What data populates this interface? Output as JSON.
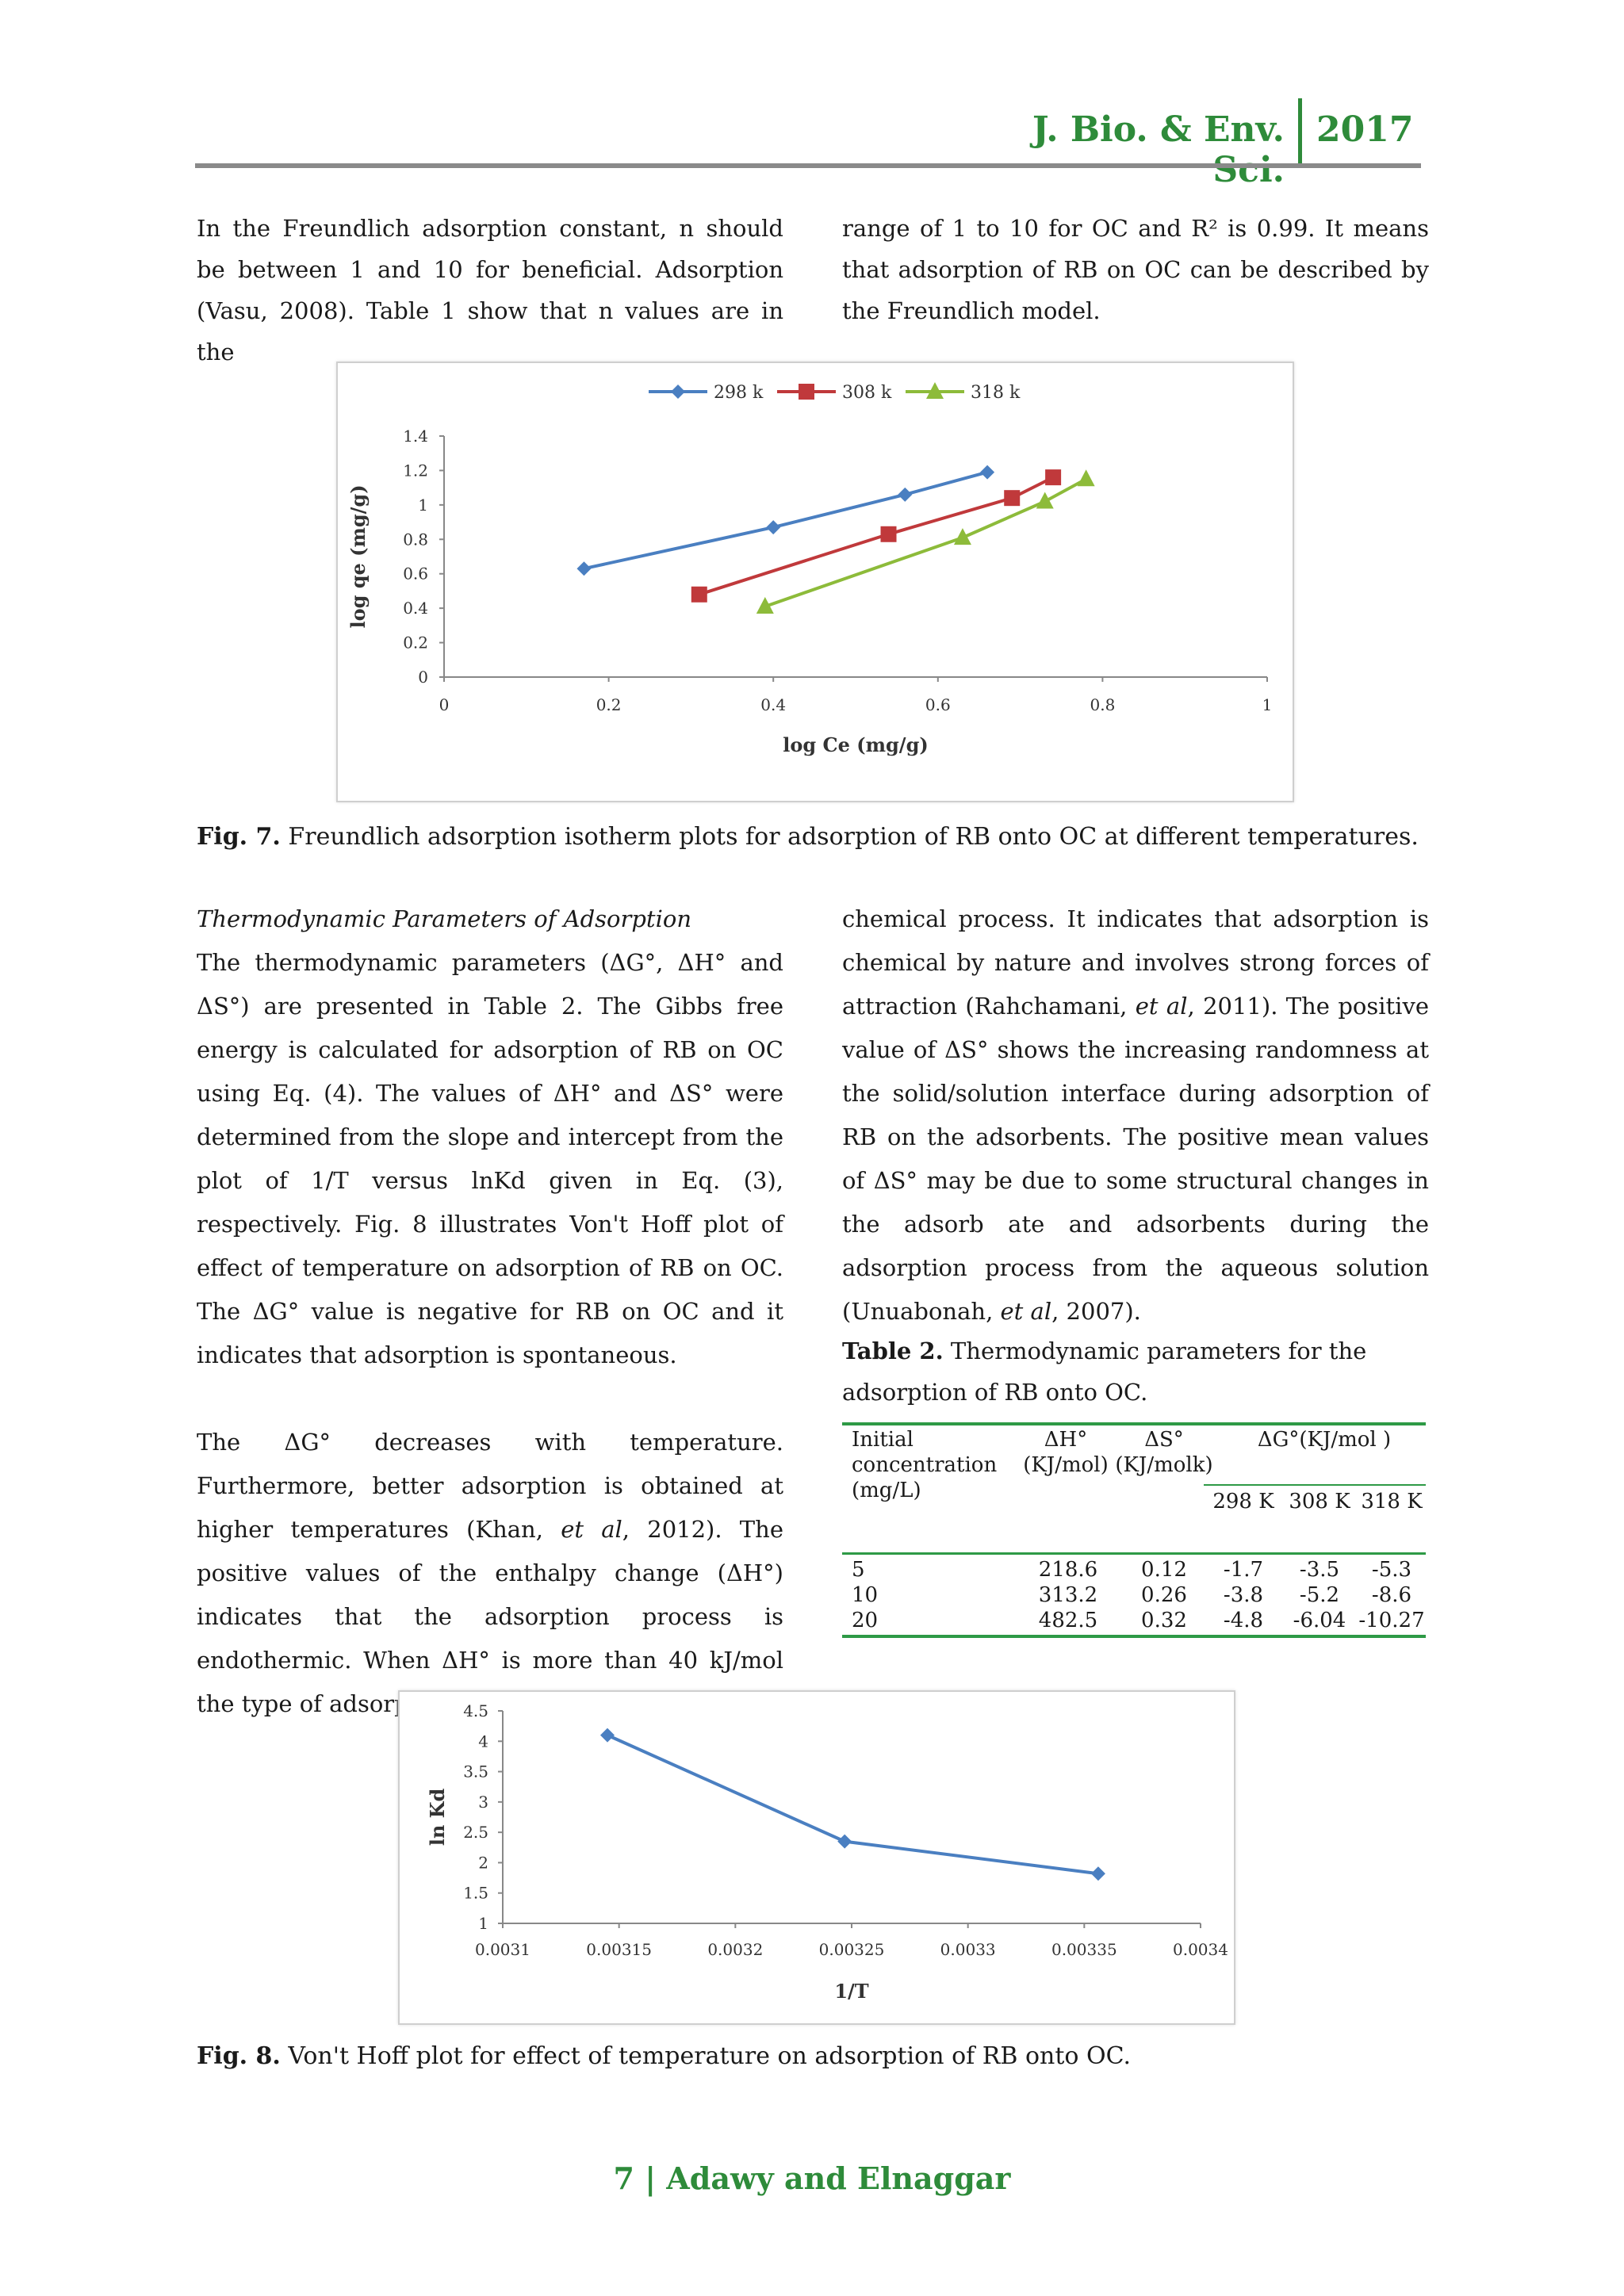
{
  "header": {
    "journal": "J. Bio. & Env. Sci.",
    "year": "2017"
  },
  "top_left": "In the Freundlich adsorption constant, n should be between 1 and 10 for beneficial. Adsorption (Vasu, 2008). Table 1 show that n values are in the",
  "top_right": "range of 1 to 10 for OC and R² is 0.99. It means that adsorption of RB on OC can be described by the Freundlich model.",
  "fig7": {
    "label": "Fig. 7.",
    "caption": " Freundlich adsorption isotherm plots for adsorption of RB onto OC at different temperatures."
  },
  "section_heading": "Thermodynamic Parameters of Adsorption",
  "left_p1": "The thermodynamic parameters (ΔG°, ΔH° and ΔS°) are presented in Table 2. The Gibbs free energy is calculated for adsorption of RB on OC using Eq. (4). The values of ΔH° and ΔS° were determined from the slope and intercept from the plot of 1/T versus lnKd given in Eq. (3), respectively. Fig. 8 illustrates Von't Hoff plot of effect of temperature on adsorption of RB on OC. The ΔG° value is negative for RB on OC and it indicates that adsorption is spontaneous.",
  "left_p2_a": "The ΔG° decreases with temperature. Furthermore, better adsorption is obtained at higher temperatures (Khan, ",
  "left_p2_etal": "et al",
  "left_p2_b": ", 2012). The positive values of the enthalpy change (ΔH°) indicates that the adsorption process is endothermic. When ΔH° is more than 40 kJ/mol the type of adsorption can be accepted to be a",
  "right_p1_a": "chemical process. It indicates that adsorption is chemical by nature and involves strong forces of attraction (Rahchamani, ",
  "right_p1_etal": "et al",
  "right_p1_b": ", 2011). The positive value of ΔS° shows the increasing randomness at the solid/solution interface during adsorption of RB on the adsorbents. The positive mean values of ΔS° may be due to some structural changes in the adsorb ate and adsorbents during the adsorption process from the aqueous solution (Unuabonah, ",
  "right_p1_etal2": "et al",
  "right_p1_c": ", 2007).",
  "table2": {
    "label": "Table 2.",
    "caption": " Thermodynamic parameters for the adsorption of RB onto OC.",
    "h_initial": "Initial",
    "h_conc": "concentration",
    "h_unit": "(mg/L)",
    "h_dh": "ΔH°",
    "h_dh_unit": "(KJ/mol)",
    "h_ds": "ΔS°",
    "h_ds_unit": "(KJ/molk)",
    "h_dg": "ΔG°(KJ/mol )",
    "h_t1": "298 K",
    "h_t2": "308 K",
    "h_t3": "318 K",
    "rows": [
      [
        "5",
        "218.6",
        "0.12",
        "-1.7",
        "-3.5",
        "-5.3"
      ],
      [
        "10",
        "313.2",
        "0.26",
        "-3.8",
        "-5.2",
        "-8.6"
      ],
      [
        "20",
        "482.5",
        "0.32",
        "-4.8",
        "-6.04",
        "-10.27"
      ]
    ]
  },
  "fig8": {
    "label": "Fig. 8.",
    "caption": " Von't Hoff plot for effect of temperature on adsorption of RB onto OC."
  },
  "footer": "7 | Adawy and Elnaggar",
  "chart_data": [
    {
      "type": "line",
      "xlabel": "log Ce (mg/g)",
      "ylabel": "log qe (mg/g)",
      "xlim": [
        0,
        1
      ],
      "ylim": [
        0,
        1.4
      ],
      "x_ticks": [
        "0",
        "0.2",
        "0.4",
        "0.6",
        "0.8",
        "1"
      ],
      "y_ticks": [
        "0",
        "0.2",
        "0.4",
        "0.6",
        "0.8",
        "1",
        "1.2",
        "1.4"
      ],
      "legend_position": "top",
      "grid": false,
      "series": [
        {
          "name": "298 k",
          "color": "#4a7fc1",
          "marker": "diamond",
          "x": [
            0.17,
            0.4,
            0.56,
            0.66
          ],
          "y": [
            0.63,
            0.87,
            1.06,
            1.19
          ]
        },
        {
          "name": "308 k",
          "color": "#c0393b",
          "marker": "square",
          "x": [
            0.31,
            0.54,
            0.69,
            0.74
          ],
          "y": [
            0.48,
            0.83,
            1.04,
            1.16
          ]
        },
        {
          "name": "318 k",
          "color": "#8dbb3a",
          "marker": "triangle",
          "x": [
            0.39,
            0.63,
            0.73,
            0.78
          ],
          "y": [
            0.41,
            0.81,
            1.02,
            1.15
          ]
        }
      ]
    },
    {
      "type": "line",
      "xlabel": "1/T",
      "ylabel": "ln Kd",
      "xlim": [
        0.0031,
        0.0034
      ],
      "ylim": [
        1,
        4.5
      ],
      "x_ticks": [
        "0.0031",
        "0.00315",
        "0.0032",
        "0.00325",
        "0.0033",
        "0.00335",
        "0.0034"
      ],
      "y_ticks": [
        "1",
        "1.5",
        "2",
        "2.5",
        "3",
        "3.5",
        "4",
        "4.5"
      ],
      "grid": false,
      "series": [
        {
          "name": "",
          "color": "#4a7fc1",
          "marker": "diamond",
          "x": [
            0.003145,
            0.003247,
            0.003356
          ],
          "y": [
            4.1,
            2.35,
            1.82
          ]
        }
      ]
    }
  ]
}
